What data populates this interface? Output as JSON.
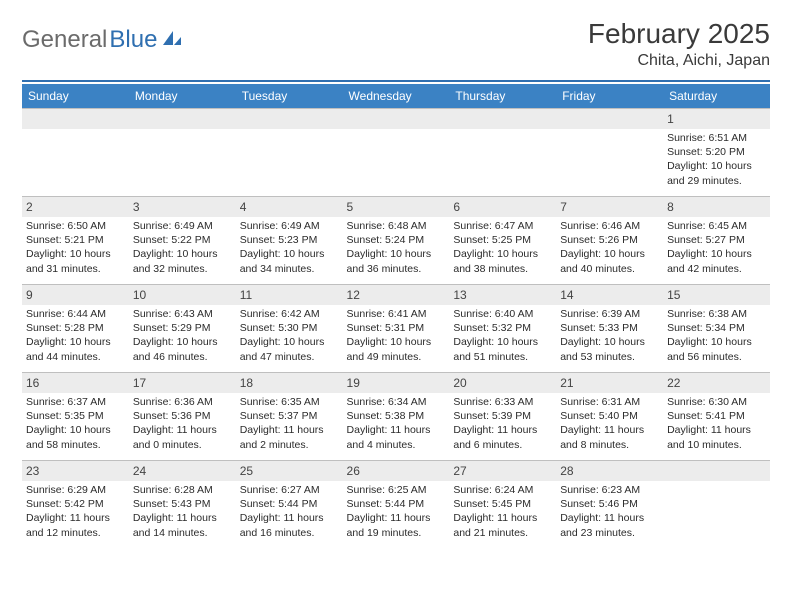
{
  "brand": {
    "part1": "General",
    "part2": "Blue"
  },
  "title": "February 2025",
  "location": "Chita, Aichi, Japan",
  "colors": {
    "header_bg": "#3b82c4",
    "header_text": "#ffffff",
    "daybar_bg": "#ececec",
    "border": "#bfbfbf",
    "rule": "#2f6fb0",
    "logo_gray": "#6b6b6b",
    "logo_blue": "#2f6fb0",
    "text": "#2b2b2b"
  },
  "day_headers": [
    "Sunday",
    "Monday",
    "Tuesday",
    "Wednesday",
    "Thursday",
    "Friday",
    "Saturday"
  ],
  "weeks": [
    [
      null,
      null,
      null,
      null,
      null,
      null,
      {
        "n": "1",
        "sr": "Sunrise: 6:51 AM",
        "ss": "Sunset: 5:20 PM",
        "dl": "Daylight: 10 hours and 29 minutes."
      }
    ],
    [
      {
        "n": "2",
        "sr": "Sunrise: 6:50 AM",
        "ss": "Sunset: 5:21 PM",
        "dl": "Daylight: 10 hours and 31 minutes."
      },
      {
        "n": "3",
        "sr": "Sunrise: 6:49 AM",
        "ss": "Sunset: 5:22 PM",
        "dl": "Daylight: 10 hours and 32 minutes."
      },
      {
        "n": "4",
        "sr": "Sunrise: 6:49 AM",
        "ss": "Sunset: 5:23 PM",
        "dl": "Daylight: 10 hours and 34 minutes."
      },
      {
        "n": "5",
        "sr": "Sunrise: 6:48 AM",
        "ss": "Sunset: 5:24 PM",
        "dl": "Daylight: 10 hours and 36 minutes."
      },
      {
        "n": "6",
        "sr": "Sunrise: 6:47 AM",
        "ss": "Sunset: 5:25 PM",
        "dl": "Daylight: 10 hours and 38 minutes."
      },
      {
        "n": "7",
        "sr": "Sunrise: 6:46 AM",
        "ss": "Sunset: 5:26 PM",
        "dl": "Daylight: 10 hours and 40 minutes."
      },
      {
        "n": "8",
        "sr": "Sunrise: 6:45 AM",
        "ss": "Sunset: 5:27 PM",
        "dl": "Daylight: 10 hours and 42 minutes."
      }
    ],
    [
      {
        "n": "9",
        "sr": "Sunrise: 6:44 AM",
        "ss": "Sunset: 5:28 PM",
        "dl": "Daylight: 10 hours and 44 minutes."
      },
      {
        "n": "10",
        "sr": "Sunrise: 6:43 AM",
        "ss": "Sunset: 5:29 PM",
        "dl": "Daylight: 10 hours and 46 minutes."
      },
      {
        "n": "11",
        "sr": "Sunrise: 6:42 AM",
        "ss": "Sunset: 5:30 PM",
        "dl": "Daylight: 10 hours and 47 minutes."
      },
      {
        "n": "12",
        "sr": "Sunrise: 6:41 AM",
        "ss": "Sunset: 5:31 PM",
        "dl": "Daylight: 10 hours and 49 minutes."
      },
      {
        "n": "13",
        "sr": "Sunrise: 6:40 AM",
        "ss": "Sunset: 5:32 PM",
        "dl": "Daylight: 10 hours and 51 minutes."
      },
      {
        "n": "14",
        "sr": "Sunrise: 6:39 AM",
        "ss": "Sunset: 5:33 PM",
        "dl": "Daylight: 10 hours and 53 minutes."
      },
      {
        "n": "15",
        "sr": "Sunrise: 6:38 AM",
        "ss": "Sunset: 5:34 PM",
        "dl": "Daylight: 10 hours and 56 minutes."
      }
    ],
    [
      {
        "n": "16",
        "sr": "Sunrise: 6:37 AM",
        "ss": "Sunset: 5:35 PM",
        "dl": "Daylight: 10 hours and 58 minutes."
      },
      {
        "n": "17",
        "sr": "Sunrise: 6:36 AM",
        "ss": "Sunset: 5:36 PM",
        "dl": "Daylight: 11 hours and 0 minutes."
      },
      {
        "n": "18",
        "sr": "Sunrise: 6:35 AM",
        "ss": "Sunset: 5:37 PM",
        "dl": "Daylight: 11 hours and 2 minutes."
      },
      {
        "n": "19",
        "sr": "Sunrise: 6:34 AM",
        "ss": "Sunset: 5:38 PM",
        "dl": "Daylight: 11 hours and 4 minutes."
      },
      {
        "n": "20",
        "sr": "Sunrise: 6:33 AM",
        "ss": "Sunset: 5:39 PM",
        "dl": "Daylight: 11 hours and 6 minutes."
      },
      {
        "n": "21",
        "sr": "Sunrise: 6:31 AM",
        "ss": "Sunset: 5:40 PM",
        "dl": "Daylight: 11 hours and 8 minutes."
      },
      {
        "n": "22",
        "sr": "Sunrise: 6:30 AM",
        "ss": "Sunset: 5:41 PM",
        "dl": "Daylight: 11 hours and 10 minutes."
      }
    ],
    [
      {
        "n": "23",
        "sr": "Sunrise: 6:29 AM",
        "ss": "Sunset: 5:42 PM",
        "dl": "Daylight: 11 hours and 12 minutes."
      },
      {
        "n": "24",
        "sr": "Sunrise: 6:28 AM",
        "ss": "Sunset: 5:43 PM",
        "dl": "Daylight: 11 hours and 14 minutes."
      },
      {
        "n": "25",
        "sr": "Sunrise: 6:27 AM",
        "ss": "Sunset: 5:44 PM",
        "dl": "Daylight: 11 hours and 16 minutes."
      },
      {
        "n": "26",
        "sr": "Sunrise: 6:25 AM",
        "ss": "Sunset: 5:44 PM",
        "dl": "Daylight: 11 hours and 19 minutes."
      },
      {
        "n": "27",
        "sr": "Sunrise: 6:24 AM",
        "ss": "Sunset: 5:45 PM",
        "dl": "Daylight: 11 hours and 21 minutes."
      },
      {
        "n": "28",
        "sr": "Sunrise: 6:23 AM",
        "ss": "Sunset: 5:46 PM",
        "dl": "Daylight: 11 hours and 23 minutes."
      },
      null
    ]
  ]
}
